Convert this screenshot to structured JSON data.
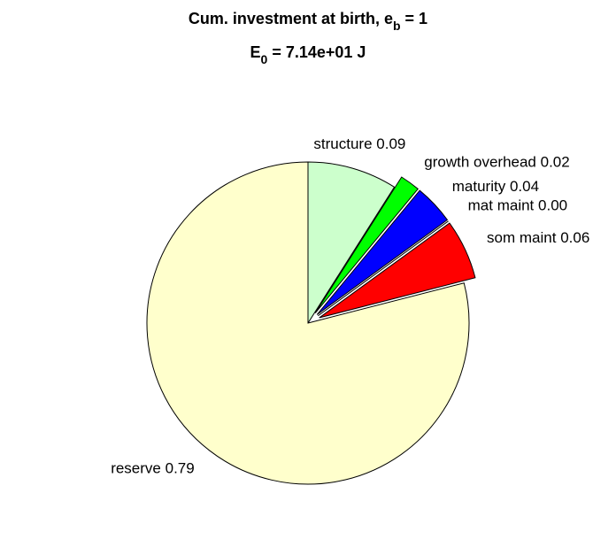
{
  "chart_data": {
    "type": "pie",
    "title": [
      "Cum. investment at birth, e",
      "b",
      " = 1"
    ],
    "subtitle": [
      "E",
      "0",
      " = 7.14e+01 J"
    ],
    "categories": [
      "structure",
      "growth overhead",
      "maturity",
      "mat maint",
      "som maint",
      "reserve"
    ],
    "values": [
      0.09,
      0.02,
      0.04,
      0.0,
      0.06,
      0.79
    ],
    "value_labels": [
      "0.09",
      "0.02",
      "0.04",
      "0.00",
      "0.06",
      "0.79"
    ],
    "colors": [
      "#ccffcc",
      "#00ff00",
      "#0000ff",
      "#ffffff",
      "#ff0000",
      "#ffffcc"
    ],
    "explode": [
      false,
      true,
      true,
      true,
      true,
      false
    ]
  }
}
